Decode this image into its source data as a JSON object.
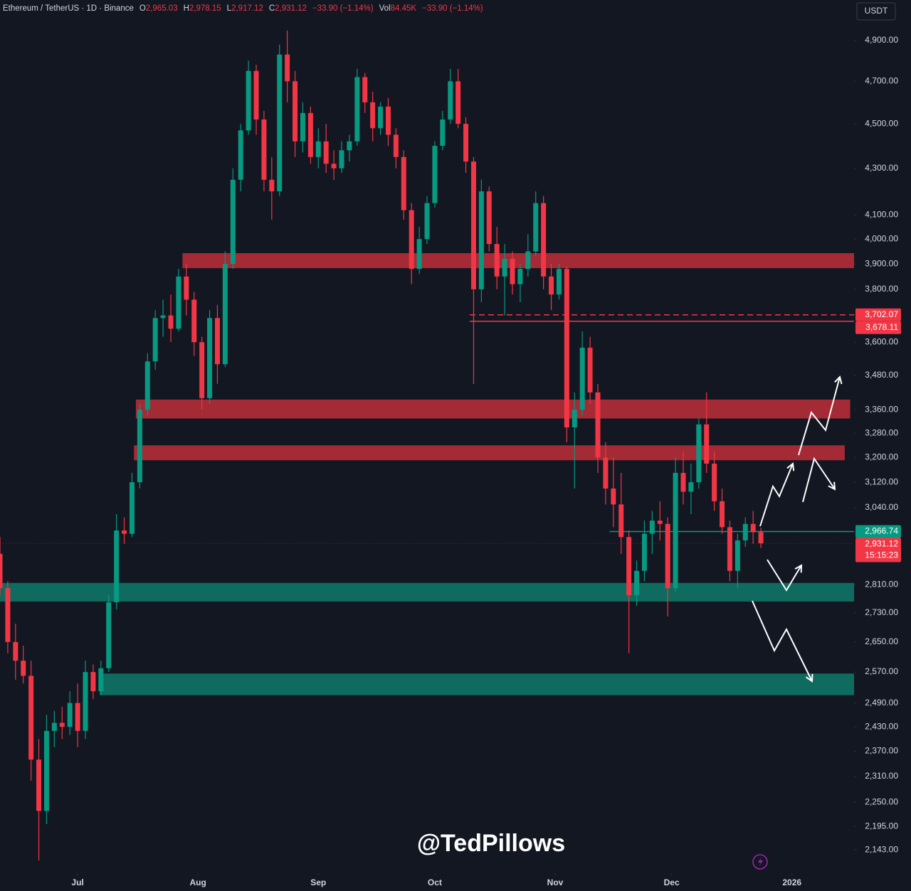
{
  "chart_data": {
    "type": "candlestick",
    "header": {
      "symbol": "Ethereum / TetherUS · 1D · Binance",
      "open_label": "O",
      "open": "2,965.03",
      "high_label": "H",
      "high": "2,978.15",
      "low_label": "L",
      "low": "2,917.12",
      "close_label": "C",
      "close": "2,931.12",
      "change": "−33.90 (−1.14%)",
      "volume_label": "Vol",
      "volume": "84.45K",
      "volume_change": "−33.90 (−1.14%)"
    },
    "currency": "USDT",
    "watermark": "@TedPillows",
    "up_color": "#089981",
    "down_color": "#f23645",
    "yscale": "log",
    "grid": false,
    "xlim": [
      0,
      220
    ],
    "ylim": [
      2097,
      5107
    ],
    "xticks": [
      {
        "value": 20,
        "label": "Jul"
      },
      {
        "value": 51,
        "label": "Aug"
      },
      {
        "value": 82,
        "label": "Sep"
      },
      {
        "value": 112,
        "label": "Oct"
      },
      {
        "value": 143,
        "label": "Nov"
      },
      {
        "value": 173,
        "label": "Dec"
      },
      {
        "value": 204,
        "label": "2026"
      }
    ],
    "yticks": [
      {
        "value": 4900,
        "label": "4,900.00"
      },
      {
        "value": 4700,
        "label": "4,700.00"
      },
      {
        "value": 4500,
        "label": "4,500.00"
      },
      {
        "value": 4300,
        "label": "4,300.00"
      },
      {
        "value": 4100,
        "label": "4,100.00"
      },
      {
        "value": 4000,
        "label": "4,000.00"
      },
      {
        "value": 3900,
        "label": "3,900.00"
      },
      {
        "value": 3800,
        "label": "3,800.00"
      },
      {
        "value": 3600,
        "label": "3,600.00"
      },
      {
        "value": 3480,
        "label": "3,480.00"
      },
      {
        "value": 3360,
        "label": "3,360.00"
      },
      {
        "value": 3280,
        "label": "3,280.00"
      },
      {
        "value": 3200,
        "label": "3,200.00"
      },
      {
        "value": 3120,
        "label": "3,120.00"
      },
      {
        "value": 3040,
        "label": "3,040.00"
      },
      {
        "value": 2810,
        "label": "2,810.00"
      },
      {
        "value": 2730,
        "label": "2,730.00"
      },
      {
        "value": 2650,
        "label": "2,650.00"
      },
      {
        "value": 2570,
        "label": "2,570.00"
      },
      {
        "value": 2490,
        "label": "2,490.00"
      },
      {
        "value": 2430,
        "label": "2,430.00"
      },
      {
        "value": 2370,
        "label": "2,370.00"
      },
      {
        "value": 2310,
        "label": "2,310.00"
      },
      {
        "value": 2250,
        "label": "2,250.00"
      },
      {
        "value": 2195,
        "label": "2,195.00"
      },
      {
        "value": 2143,
        "label": "2,143.00"
      }
    ],
    "x": [
      0,
      2,
      4,
      6,
      8,
      10,
      12,
      14,
      16,
      18,
      20,
      22,
      24,
      26,
      28,
      30,
      32,
      34,
      36,
      38,
      40,
      42,
      44,
      46,
      48,
      50,
      52,
      54,
      56,
      58,
      60,
      62,
      64,
      66,
      68,
      70,
      72,
      74,
      76,
      78,
      80,
      82,
      84,
      86,
      88,
      90,
      92,
      94,
      96,
      98,
      100,
      102,
      104,
      106,
      108,
      110,
      112,
      114,
      116,
      118,
      120,
      122,
      124,
      126,
      128,
      130,
      132,
      134,
      136,
      138,
      140,
      142,
      144,
      146,
      148,
      150,
      152,
      154,
      156,
      158,
      160,
      162,
      164,
      166,
      168,
      170,
      172,
      174,
      176,
      178,
      180,
      182,
      184,
      186,
      188,
      190,
      192,
      194,
      196
    ],
    "open": [
      2900,
      2800,
      2650,
      2600,
      2560,
      2350,
      2230,
      2420,
      2440,
      2430,
      2490,
      2420,
      2570,
      2520,
      2580,
      2760,
      2970,
      2960,
      3120,
      3360,
      3530,
      3690,
      3700,
      3650,
      3850,
      3760,
      3600,
      3400,
      3690,
      3520,
      3900,
      4250,
      4470,
      4750,
      4520,
      4250,
      4200,
      4830,
      4700,
      4420,
      4550,
      4350,
      4420,
      4320,
      4300,
      4380,
      4420,
      4720,
      4600,
      4480,
      4580,
      4450,
      4350,
      4120,
      3880,
      4000,
      4150,
      4400,
      4520,
      4700,
      4500,
      4330,
      3800,
      4200,
      3980,
      3850,
      3920,
      3820,
      3880,
      3950,
      4150,
      3850,
      3780,
      3880,
      3300,
      3360,
      3580,
      3420,
      3200,
      3100,
      3050,
      2950,
      2780,
      2850,
      2960,
      3000,
      2990,
      2800,
      3150,
      3090,
      3120,
      3310,
      3180,
      3060,
      2980,
      2850,
      2940,
      2990,
      2965.03
    ],
    "high": [
      2950,
      2820,
      2700,
      2640,
      2600,
      2400,
      2460,
      2470,
      2480,
      2520,
      2540,
      2600,
      2590,
      2600,
      2780,
      3020,
      3010,
      3150,
      3380,
      3560,
      3720,
      3760,
      3780,
      3880,
      3900,
      3790,
      3620,
      3720,
      3740,
      3950,
      4300,
      4500,
      4800,
      4780,
      4560,
      4350,
      4880,
      4950,
      4750,
      4600,
      4580,
      4480,
      4500,
      4380,
      4420,
      4450,
      4760,
      4740,
      4650,
      4600,
      4620,
      4480,
      4380,
      4150,
      4050,
      4180,
      4420,
      4560,
      4760,
      4760,
      4530,
      4350,
      4250,
      4220,
      4050,
      3980,
      3950,
      3900,
      4020,
      4200,
      4180,
      3900,
      3900,
      3890,
      3420,
      3640,
      3620,
      3450,
      3250,
      3200,
      3150,
      2970,
      2880,
      3000,
      3030,
      3060,
      3010,
      3200,
      3220,
      3180,
      3330,
      3420,
      3220,
      3100,
      3000,
      2960,
      3010,
      3030,
      2978.15
    ],
    "low": [
      2780,
      2620,
      2550,
      2540,
      2300,
      2120,
      2200,
      2380,
      2400,
      2410,
      2380,
      2400,
      2500,
      2510,
      2570,
      2740,
      2930,
      2950,
      3100,
      3340,
      3500,
      3620,
      3600,
      3640,
      3700,
      3550,
      3360,
      3380,
      3450,
      3510,
      3880,
      4200,
      4450,
      4450,
      4200,
      4080,
      4180,
      4600,
      4350,
      4370,
      4320,
      4300,
      4280,
      4250,
      4280,
      4330,
      4400,
      4550,
      4420,
      4450,
      4400,
      4300,
      4080,
      3820,
      3860,
      3980,
      4130,
      4380,
      4500,
      4480,
      4280,
      3450,
      3750,
      3950,
      3800,
      3700,
      3780,
      3750,
      3850,
      3930,
      3800,
      3720,
      3760,
      3250,
      3100,
      3340,
      3380,
      3150,
      3050,
      2980,
      2900,
      2620,
      2750,
      2820,
      2900,
      2940,
      2720,
      2790,
      3050,
      3020,
      3100,
      3150,
      3030,
      2960,
      2820,
      2800,
      2920,
      2930,
      2917.12
    ],
    "close": [
      2800,
      2650,
      2600,
      2560,
      2350,
      2230,
      2420,
      2440,
      2430,
      2490,
      2420,
      2570,
      2520,
      2580,
      2760,
      2970,
      2960,
      3120,
      3360,
      3530,
      3690,
      3700,
      3650,
      3850,
      3760,
      3600,
      3400,
      3690,
      3520,
      3900,
      4250,
      4470,
      4750,
      4520,
      4250,
      4200,
      4830,
      4700,
      4420,
      4550,
      4350,
      4420,
      4320,
      4300,
      4380,
      4420,
      4720,
      4600,
      4480,
      4580,
      4450,
      4350,
      4120,
      3880,
      4000,
      4150,
      4400,
      4520,
      4700,
      4500,
      4330,
      3800,
      4200,
      3980,
      3850,
      3920,
      3820,
      3880,
      3950,
      4150,
      3850,
      3780,
      3880,
      3300,
      3360,
      3580,
      3420,
      3200,
      3100,
      3050,
      2950,
      2780,
      2850,
      2960,
      3000,
      2990,
      2800,
      3150,
      3090,
      3120,
      3310,
      3180,
      3060,
      2980,
      2850,
      2940,
      2990,
      2965,
      2931.12
    ],
    "zones": [
      {
        "from": 3883,
        "to": 3943,
        "x_start": 47,
        "x_end": 220,
        "color": "#b52c39"
      },
      {
        "from": 3330,
        "to": 3395,
        "x_start": 35,
        "x_end": 219,
        "color": "#b52c39"
      },
      {
        "from": 3191,
        "to": 3240,
        "x_start": 34.5,
        "x_end": 217.6,
        "color": "#b52c39"
      },
      {
        "from": 2762,
        "to": 2815,
        "x_start": 0,
        "x_end": 220,
        "color": "#0f7466"
      },
      {
        "from": 2510,
        "to": 2566,
        "x_start": 25.7,
        "x_end": 220,
        "color": "#0f7466"
      }
    ],
    "levels": [
      {
        "value": 3702.07,
        "label": "3,702.07",
        "color": "#f23645",
        "style": "dashed",
        "x_start": 121
      },
      {
        "value": 3678.11,
        "label": "3,678.11",
        "color": "#f23645",
        "style": "solid",
        "x_start": 121
      },
      {
        "value": 2966.74,
        "label": "2,966.74",
        "color": "#089981",
        "style": "solid",
        "x_start": 157
      },
      {
        "value": 2931.12,
        "label": "2,931.12",
        "color": "#f23645",
        "style": "dotted",
        "x_start": 0
      }
    ],
    "countdown": "15:15:23"
  }
}
